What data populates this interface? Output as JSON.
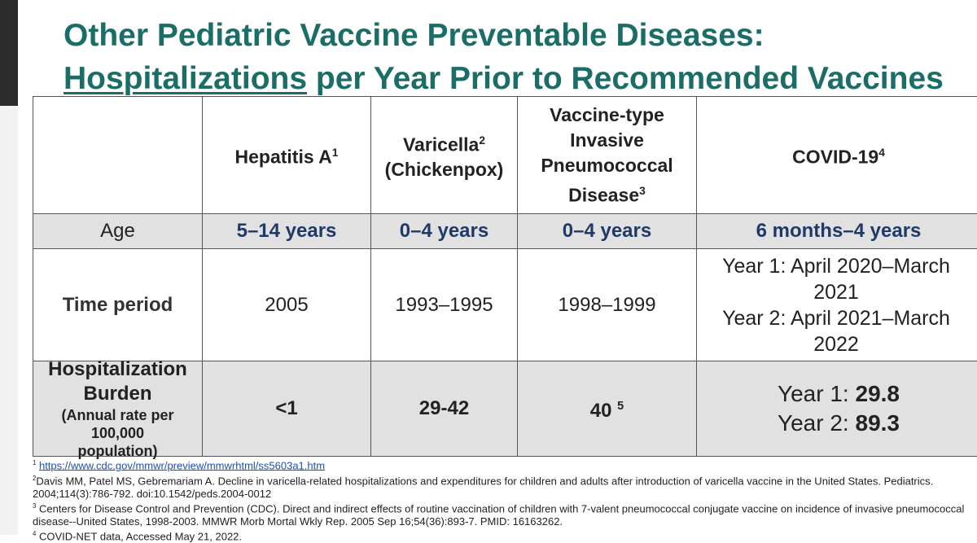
{
  "title": {
    "line1": "Other Pediatric Vaccine Preventable Diseases:",
    "line2_underlined": "Hospitalizations",
    "line2_rest": "per Year Prior to Recommended Vaccines"
  },
  "table": {
    "header": [
      {
        "text": "Hepatitis A",
        "sup": "1"
      },
      {
        "text": "Varicella",
        "sup": "2",
        "sub": "(Chickenpox)"
      },
      {
        "lines": [
          "Vaccine-type",
          "Invasive",
          "Pneumococcal"
        ],
        "text": "Disease",
        "sup": "3"
      },
      {
        "text": "COVID-19",
        "sup": "4"
      }
    ],
    "rows": [
      {
        "label": "Age",
        "cells": [
          "5–14 years",
          "0–4 years",
          "0–4 years",
          "6 months–4 years"
        ]
      },
      {
        "label": "Time period",
        "cells": [
          "2005",
          "1993–1995",
          "1998–1999"
        ],
        "covid": [
          "Year 1: April 2020–March 2021",
          "Year 2: April 2021–March 2022"
        ]
      },
      {
        "label": "Hospitalization Burden",
        "note": "(Annual rate per 100,000 population)",
        "cells": [
          "<1",
          "29-42"
        ],
        "pneumo": {
          "text": "40",
          "sup": "5"
        },
        "covid": [
          {
            "label": "Year 1:",
            "value": "29.8"
          },
          {
            "label": "Year 2:",
            "value": "89.3"
          }
        ]
      }
    ]
  },
  "footnotes": [
    {
      "sup": "1",
      "text": "https://www.cdc.gov/mmwr/preview/mmwrhtml/ss5603a1.htm"
    },
    {
      "sup": "2",
      "text": "Davis MM, Patel MS, Gebremariam A. Decline in varicella-related hospitalizations and expenditures for children and adults after introduction of varicella vaccine in the United States. Pediatrics. 2004;114(3):786-792. doi:10.1542/peds.2004-0012"
    },
    {
      "sup": "3",
      "text": "Centers for Disease Control and Prevention (CDC). Direct and indirect effects of routine vaccination of children with 7-valent pneumococcal conjugate vaccine on incidence of invasive pneumococcal disease--United States, 1998-2003. MMWR Morb Mortal Wkly Rep. 2005 Sep 16;54(36):893-7. PMID: 16163262."
    },
    {
      "sup": "4",
      "text": "COVID-NET data, Accessed May 21, 2022."
    }
  ]
}
